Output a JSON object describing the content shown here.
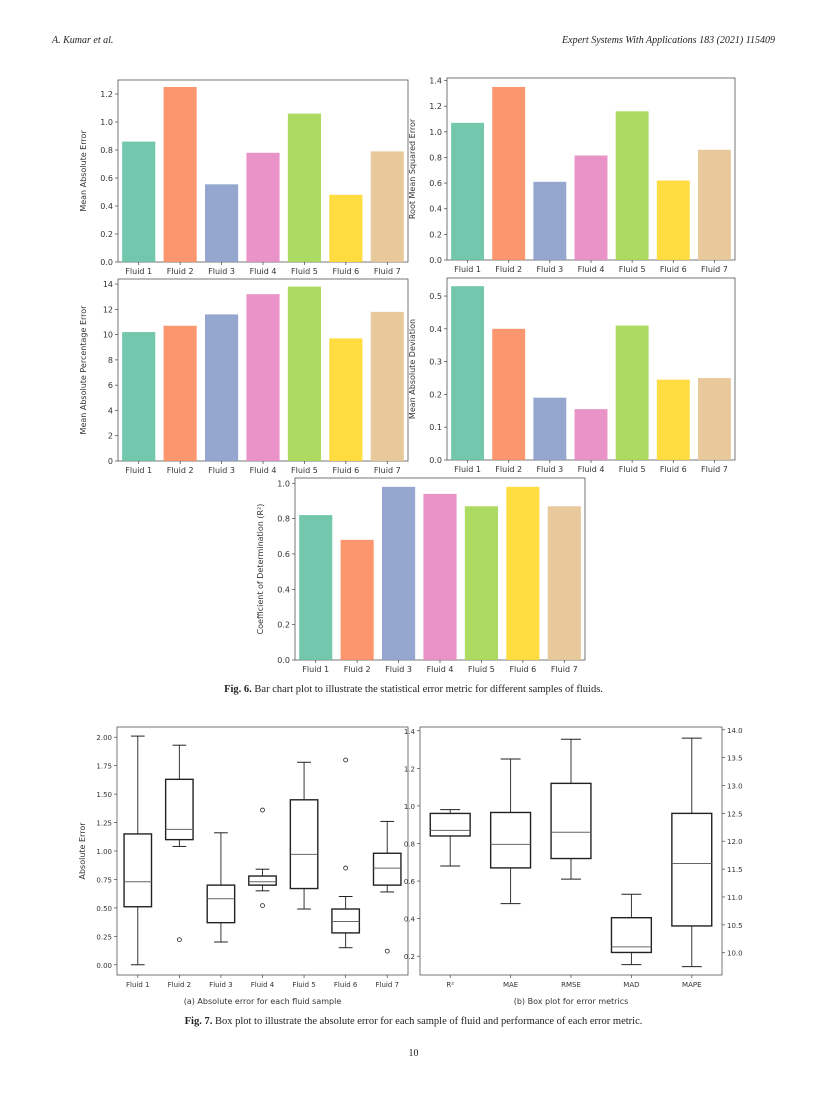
{
  "header": {
    "left": "A. Kumar et al.",
    "right": "Expert Systems With Applications 183 (2021) 115409"
  },
  "colors": [
    "#66c2a5",
    "#fc8d62",
    "#8da0cb",
    "#e78ac3",
    "#a6d854",
    "#ffd92f",
    "#e5c494"
  ],
  "chart_data": [
    {
      "type": "bar",
      "ylabel": "Mean Absolute Error",
      "categories": [
        "Fluid 1",
        "Fluid 2",
        "Fluid 3",
        "Fluid 4",
        "Fluid 5",
        "Fluid 6",
        "Fluid 7"
      ],
      "values": [
        0.86,
        1.25,
        0.555,
        0.78,
        1.06,
        0.48,
        0.79
      ],
      "ylim": [
        0,
        1.3
      ],
      "yticks": [
        "0.0",
        "0.2",
        "0.4",
        "0.6",
        "0.8",
        "1.0",
        "1.2"
      ]
    },
    {
      "type": "bar",
      "ylabel": "Root Mean Squared Error",
      "categories": [
        "Fluid 1",
        "Fluid 2",
        "Fluid 3",
        "Fluid 4",
        "Fluid 5",
        "Fluid 6",
        "Fluid 7"
      ],
      "values": [
        1.07,
        1.35,
        0.61,
        0.815,
        1.16,
        0.62,
        0.86
      ],
      "ylim": [
        0,
        1.42
      ],
      "yticks": [
        "0.0",
        "0.2",
        "0.4",
        "0.6",
        "0.8",
        "1.0",
        "1.2",
        "1.4"
      ]
    },
    {
      "type": "bar",
      "ylabel": "Mean Absolute Percentage Error",
      "categories": [
        "Fluid 1",
        "Fluid 2",
        "Fluid 3",
        "Fluid 4",
        "Fluid 5",
        "Fluid 6",
        "Fluid 7"
      ],
      "values": [
        10.2,
        10.7,
        11.6,
        13.2,
        13.8,
        9.7,
        11.8
      ],
      "ylim": [
        0,
        14.4
      ],
      "yticks": [
        "0",
        "2",
        "4",
        "6",
        "8",
        "10",
        "12",
        "14"
      ]
    },
    {
      "type": "bar",
      "ylabel": "Mean Absolute Deviation",
      "categories": [
        "Fluid 1",
        "Fluid 2",
        "Fluid 3",
        "Fluid 4",
        "Fluid 5",
        "Fluid 6",
        "Fluid 7"
      ],
      "values": [
        0.53,
        0.4,
        0.19,
        0.155,
        0.41,
        0.245,
        0.25
      ],
      "ylim": [
        0,
        0.555
      ],
      "yticks": [
        "0.0",
        "0.1",
        "0.2",
        "0.3",
        "0.4",
        "0.5"
      ]
    },
    {
      "type": "bar",
      "ylabel": "Coefficient of Determination (R²)",
      "categories": [
        "Fluid 1",
        "Fluid 2",
        "Fluid 3",
        "Fluid 4",
        "Fluid 5",
        "Fluid 6",
        "Fluid 7"
      ],
      "values": [
        0.82,
        0.68,
        0.98,
        0.94,
        0.87,
        0.98,
        0.87
      ],
      "ylim": [
        0,
        1.03
      ],
      "yticks": [
        "0.0",
        "0.2",
        "0.4",
        "0.6",
        "0.8",
        "1.0"
      ]
    },
    {
      "type": "box",
      "ylabel": "Absolute Error",
      "categories": [
        "Fluid 1",
        "Fluid 2",
        "Fluid 3",
        "Fluid 4",
        "Fluid 5",
        "Fluid 6",
        "Fluid 7"
      ],
      "ylim": [
        -0.09,
        2.09
      ],
      "yticks": [
        "0.00",
        "0.25",
        "0.50",
        "0.75",
        "1.00",
        "1.25",
        "1.50",
        "1.75",
        "2.00"
      ],
      "boxes": [
        {
          "whislo": 0,
          "q1": 0.51,
          "med": 0.73,
          "q3": 1.15,
          "whishi": 2.01,
          "fliers": []
        },
        {
          "whislo": 1.04,
          "q1": 1.1,
          "med": 1.19,
          "q3": 1.63,
          "whishi": 1.93,
          "fliers": [
            0.22
          ]
        },
        {
          "whislo": 0.2,
          "q1": 0.37,
          "med": 0.58,
          "q3": 0.7,
          "whishi": 1.16,
          "fliers": []
        },
        {
          "whislo": 0.65,
          "q1": 0.7,
          "med": 0.73,
          "q3": 0.78,
          "whishi": 0.84,
          "fliers": [
            1.36,
            0.52
          ]
        },
        {
          "whislo": 0.49,
          "q1": 0.67,
          "med": 0.97,
          "q3": 1.45,
          "whishi": 1.78,
          "fliers": []
        },
        {
          "whislo": 0.15,
          "q1": 0.28,
          "med": 0.38,
          "q3": 0.49,
          "whishi": 0.6,
          "fliers": [
            1.8,
            0.85
          ]
        },
        {
          "whislo": 0.64,
          "q1": 0.7,
          "med": 0.85,
          "q3": 0.98,
          "whishi": 1.26,
          "fliers": [
            0.12
          ]
        }
      ],
      "subcaption": "(a) Absolute error for each fluid sample"
    },
    {
      "type": "box",
      "ylabel": "",
      "categories": [
        "R²",
        "MAE",
        "RMSE",
        "MAD",
        "MAPE"
      ],
      "ylim": [
        0.1,
        1.42
      ],
      "yticks": [
        "0.2",
        "0.4",
        "0.6",
        "0.8",
        "1.0",
        "1.2",
        "1.4"
      ],
      "ylim_right": [
        9.6,
        14.05
      ],
      "yticks_right": [
        "10.0",
        "10.5",
        "11.0",
        "11.5",
        "12.0",
        "12.5",
        "13.0",
        "13.5",
        "14.0"
      ],
      "right_axis_series": "MAPE",
      "boxes": [
        {
          "whislo": 0.68,
          "q1": 0.84,
          "med": 0.87,
          "q3": 0.96,
          "whishi": 0.98,
          "fliers": []
        },
        {
          "whislo": 0.48,
          "q1": 0.67,
          "med": 0.795,
          "q3": 0.965,
          "whishi": 1.25,
          "fliers": []
        },
        {
          "whislo": 0.61,
          "q1": 0.72,
          "med": 0.86,
          "q3": 1.12,
          "whishi": 1.355,
          "fliers": []
        },
        {
          "whislo": 0.155,
          "q1": 0.22,
          "med": 0.25,
          "q3": 0.405,
          "whishi": 0.53,
          "fliers": []
        },
        {
          "whislo": 9.75,
          "q1": 10.48,
          "med": 11.6,
          "q3": 12.5,
          "whishi": 13.85,
          "fliers": []
        }
      ],
      "subcaption": "(b) Box plot for error metrics"
    }
  ],
  "fig6": {
    "label": "Fig. 6.",
    "text": " Bar chart plot to illustrate the statistical error metric for different samples of fluids."
  },
  "fig7": {
    "label": "Fig. 7.",
    "text": " Box plot to illustrate the absolute error for each sample of fluid and performance of each error metric."
  },
  "page_number": "10"
}
